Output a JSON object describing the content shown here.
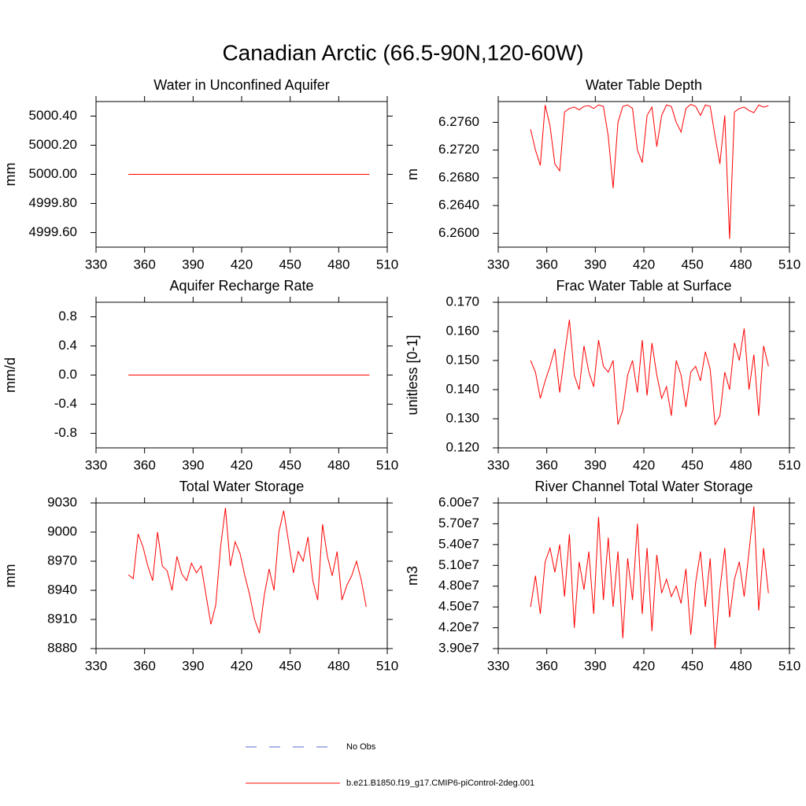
{
  "title": "Canadian Arctic (66.5-90N,120-60W)",
  "legend": [
    {
      "name": "No Obs",
      "color": "#5a6ec8",
      "dash": true
    },
    {
      "name": "b.e21.B1850.f19_g17.CMIP6-piControl-2deg.001",
      "color": "#ff0000",
      "dash": false
    }
  ],
  "chart_data": [
    {
      "type": "line",
      "title": "Water in Unconfined Aquifer",
      "y_label": "mm",
      "x": [
        350,
        499
      ],
      "series": [
        {
          "color": "#ff0000",
          "values": [
            5000,
            5000
          ]
        }
      ],
      "xlim": [
        330,
        510
      ],
      "xticks": [
        330,
        360,
        390,
        420,
        450,
        480,
        510
      ],
      "ylim": [
        4999.5,
        5000.5
      ],
      "yticks": [
        {
          "value": 4999.6,
          "label": "4999.60"
        },
        {
          "value": 4999.8,
          "label": "4999.80"
        },
        {
          "value": 5000,
          "label": "5000.00"
        },
        {
          "value": 5000.2,
          "label": "5000.20"
        },
        {
          "value": 5000.4,
          "label": "5000.40"
        }
      ]
    },
    {
      "type": "line",
      "title": "Water Table Depth",
      "y_label": "m",
      "x": [
        350,
        353,
        356,
        359,
        362,
        365,
        368,
        371,
        374,
        377,
        380,
        383,
        386,
        389,
        392,
        395,
        398,
        401,
        404,
        407,
        410,
        413,
        416,
        419,
        422,
        425,
        428,
        431,
        434,
        437,
        440,
        443,
        446,
        449,
        452,
        455,
        458,
        461,
        464,
        467,
        470,
        473,
        476,
        479,
        482,
        485,
        488,
        491,
        494,
        497
      ],
      "series": [
        {
          "color": "#ff0000",
          "values": [
            6.275,
            6.272,
            6.2698,
            6.2785,
            6.2755,
            6.27,
            6.269,
            6.2775,
            6.278,
            6.2782,
            6.2778,
            6.2783,
            6.2784,
            6.278,
            6.2785,
            6.2783,
            6.274,
            6.2665,
            6.276,
            6.2783,
            6.2785,
            6.278,
            6.272,
            6.2702,
            6.277,
            6.2782,
            6.2725,
            6.277,
            6.2785,
            6.2783,
            6.276,
            6.2746,
            6.278,
            6.2786,
            6.2783,
            6.277,
            6.2785,
            6.2783,
            6.274,
            6.27,
            6.277,
            6.2592,
            6.2775,
            6.278,
            6.2782,
            6.2777,
            6.2774,
            6.2785,
            6.2782,
            6.2784
          ]
        }
      ],
      "xlim": [
        330,
        510
      ],
      "xticks": [
        330,
        360,
        390,
        420,
        450,
        480,
        510
      ],
      "ylim": [
        6.258,
        6.279
      ],
      "yticks": [
        {
          "value": 6.26,
          "label": "6.2600"
        },
        {
          "value": 6.264,
          "label": "6.2640"
        },
        {
          "value": 6.268,
          "label": "6.2680"
        },
        {
          "value": 6.272,
          "label": "6.2720"
        },
        {
          "value": 6.276,
          "label": "6.2760"
        }
      ]
    },
    {
      "type": "line",
      "title": "Aquifer Recharge Rate",
      "y_label": "mm/d",
      "x": [
        350,
        499
      ],
      "series": [
        {
          "color": "#ff0000",
          "values": [
            0,
            0
          ]
        }
      ],
      "xlim": [
        330,
        510
      ],
      "xticks": [
        330,
        360,
        390,
        420,
        450,
        480,
        510
      ],
      "ylim": [
        -1,
        1
      ],
      "yticks": [
        -0.8,
        -0.4,
        {
          "value": 0,
          "label": "0.0"
        },
        0.4,
        0.8
      ]
    },
    {
      "type": "line",
      "title": "Frac Water Table at Surface",
      "y_label": "unitless [0-1]",
      "x": [
        350,
        353,
        356,
        359,
        362,
        365,
        368,
        371,
        374,
        377,
        380,
        383,
        386,
        389,
        392,
        395,
        398,
        401,
        404,
        407,
        410,
        413,
        416,
        419,
        422,
        425,
        428,
        431,
        434,
        437,
        440,
        443,
        446,
        449,
        452,
        455,
        458,
        461,
        464,
        467,
        470,
        473,
        476,
        479,
        482,
        485,
        488,
        491,
        494,
        497
      ],
      "series": [
        {
          "color": "#ff0000",
          "values": [
            0.15,
            0.146,
            0.137,
            0.143,
            0.148,
            0.154,
            0.139,
            0.152,
            0.164,
            0.145,
            0.14,
            0.155,
            0.146,
            0.141,
            0.157,
            0.148,
            0.146,
            0.15,
            0.128,
            0.133,
            0.145,
            0.15,
            0.139,
            0.157,
            0.138,
            0.156,
            0.145,
            0.137,
            0.141,
            0.131,
            0.15,
            0.145,
            0.134,
            0.146,
            0.148,
            0.143,
            0.153,
            0.147,
            0.128,
            0.131,
            0.146,
            0.14,
            0.156,
            0.15,
            0.161,
            0.14,
            0.152,
            0.131,
            0.155,
            0.148
          ]
        }
      ],
      "xlim": [
        330,
        510
      ],
      "xticks": [
        330,
        360,
        390,
        420,
        450,
        480,
        510
      ],
      "ylim": [
        0.12,
        0.17
      ],
      "yticks": [
        {
          "value": 0.12,
          "label": "0.120"
        },
        {
          "value": 0.13,
          "label": "0.130"
        },
        {
          "value": 0.14,
          "label": "0.140"
        },
        {
          "value": 0.15,
          "label": "0.150"
        },
        {
          "value": 0.16,
          "label": "0.160"
        },
        {
          "value": 0.17,
          "label": "0.170"
        }
      ]
    },
    {
      "type": "line",
      "title": "Total Water Storage",
      "y_label": "mm",
      "x": [
        350,
        353,
        356,
        359,
        362,
        365,
        368,
        371,
        374,
        377,
        380,
        383,
        386,
        389,
        392,
        395,
        398,
        401,
        404,
        407,
        410,
        413,
        416,
        419,
        422,
        425,
        428,
        431,
        434,
        437,
        440,
        443,
        446,
        449,
        452,
        455,
        458,
        461,
        464,
        467,
        470,
        473,
        476,
        479,
        482,
        485,
        488,
        491,
        494,
        497
      ],
      "series": [
        {
          "color": "#ff0000",
          "values": [
            8956,
            8952,
            8998,
            8985,
            8965,
            8950,
            9000,
            8965,
            8960,
            8940,
            8975,
            8957,
            8950,
            8968,
            8958,
            8965,
            8935,
            8905,
            8925,
            8985,
            9025,
            8965,
            8990,
            8978,
            8955,
            8935,
            8910,
            8896,
            8935,
            8962,
            8940,
            9000,
            9022,
            8990,
            8958,
            8980,
            8970,
            8995,
            8950,
            8930,
            9008,
            8975,
            8955,
            8980,
            8930,
            8945,
            8955,
            8970,
            8950,
            8923
          ]
        }
      ],
      "xlim": [
        330,
        510
      ],
      "xticks": [
        330,
        360,
        390,
        420,
        450,
        480,
        510
      ],
      "ylim": [
        8880,
        9030
      ],
      "yticks": [
        8880,
        8910,
        8940,
        8970,
        9000,
        9030
      ]
    },
    {
      "type": "line",
      "title": "River Channel Total Water Storage",
      "y_label": "m3",
      "x": [
        350,
        353,
        356,
        359,
        362,
        365,
        368,
        371,
        374,
        377,
        380,
        383,
        386,
        389,
        392,
        395,
        398,
        401,
        404,
        407,
        410,
        413,
        416,
        419,
        422,
        425,
        428,
        431,
        434,
        437,
        440,
        443,
        446,
        449,
        452,
        455,
        458,
        461,
        464,
        467,
        470,
        473,
        476,
        479,
        482,
        485,
        488,
        491,
        494,
        497
      ],
      "series": [
        {
          "color": "#ff0000",
          "values": [
            45000000,
            49500000,
            44000000,
            51500000,
            53500000,
            50000000,
            54000000,
            46500000,
            55500000,
            42000000,
            51500000,
            47500000,
            53000000,
            44000000,
            58000000,
            46000000,
            55000000,
            45000000,
            53000000,
            40500000,
            52000000,
            46000000,
            57000000,
            44000000,
            53500000,
            41500000,
            52500000,
            47000000,
            49000000,
            46500000,
            48000000,
            45500000,
            50500000,
            41000000,
            48500000,
            53000000,
            45000000,
            52000000,
            39000000,
            47500000,
            53500000,
            43500000,
            49000000,
            51500000,
            46500000,
            53000000,
            59500000,
            44500000,
            53500000,
            47000000
          ]
        }
      ],
      "xlim": [
        330,
        510
      ],
      "xticks": [
        330,
        360,
        390,
        420,
        450,
        480,
        510
      ],
      "ylim": [
        39000000,
        60000000
      ],
      "yticks": [
        {
          "value": 39000000,
          "label": "3.90e7"
        },
        {
          "value": 42000000,
          "label": "4.20e7"
        },
        {
          "value": 45000000,
          "label": "4.50e7"
        },
        {
          "value": 48000000,
          "label": "4.80e7"
        },
        {
          "value": 51000000,
          "label": "5.10e7"
        },
        {
          "value": 54000000,
          "label": "5.40e7"
        },
        {
          "value": 57000000,
          "label": "5.70e7"
        },
        {
          "value": 60000000,
          "label": "6.00e7"
        }
      ]
    }
  ]
}
